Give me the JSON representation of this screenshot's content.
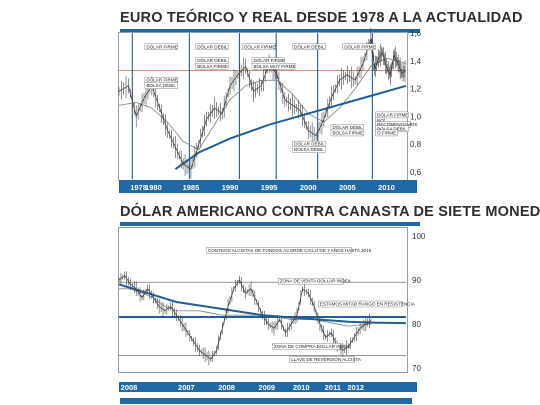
{
  "colors": {
    "accent": "#1f6aa4",
    "axis_bar": "#1f6aa4",
    "trend": "#1e5f9c",
    "price": "#444444",
    "ma": "#8a8a8a",
    "red": "#c8422e"
  },
  "chart_data": [
    {
      "type": "line",
      "title": "EURO TEÓRICO Y REAL DESDE 1978 A LA ACTUALIDAD",
      "x_ticks": [
        "1978",
        "1980",
        "1985",
        "1990",
        "1995",
        "2000",
        "2005",
        "2010"
      ],
      "y_ticks": [
        "1,6",
        "1,4",
        "1,2",
        "1,0",
        "0,8",
        "0,6"
      ],
      "ylim": [
        0.6,
        1.6
      ],
      "xlim": [
        1975.8,
        2012.5
      ],
      "series_price": [
        [
          1975.8,
          1.18
        ],
        [
          1977,
          1.22
        ],
        [
          1978,
          1.0
        ],
        [
          1979,
          1.13
        ],
        [
          1980,
          1.22
        ],
        [
          1981,
          1.06
        ],
        [
          1982,
          0.9
        ],
        [
          1983,
          0.78
        ],
        [
          1984,
          0.66
        ],
        [
          1985,
          0.62
        ],
        [
          1986,
          0.8
        ],
        [
          1987,
          0.98
        ],
        [
          1988,
          1.06
        ],
        [
          1989,
          1.02
        ],
        [
          1990,
          1.22
        ],
        [
          1991,
          1.3
        ],
        [
          1992,
          1.36
        ],
        [
          1993,
          1.18
        ],
        [
          1994,
          1.22
        ],
        [
          1995,
          1.38
        ],
        [
          1996,
          1.3
        ],
        [
          1997,
          1.12
        ],
        [
          1998,
          1.08
        ],
        [
          1999,
          1.04
        ],
        [
          2000,
          0.9
        ],
        [
          2001,
          0.86
        ],
        [
          2002,
          0.98
        ],
        [
          2003,
          1.14
        ],
        [
          2004,
          1.26
        ],
        [
          2005,
          1.3
        ],
        [
          2006,
          1.26
        ],
        [
          2007,
          1.38
        ],
        [
          2008,
          1.56
        ],
        [
          2008.5,
          1.34
        ],
        [
          2009,
          1.42
        ],
        [
          2009.5,
          1.46
        ],
        [
          2010,
          1.36
        ],
        [
          2010.5,
          1.3
        ],
        [
          2011,
          1.44
        ],
        [
          2011.5,
          1.38
        ],
        [
          2012,
          1.31
        ],
        [
          2012.5,
          1.33
        ]
      ],
      "series_ma": [
        [
          1975.8,
          1.08
        ],
        [
          1978,
          1.1
        ],
        [
          1980,
          1.06
        ],
        [
          1982,
          0.96
        ],
        [
          1984,
          0.82
        ],
        [
          1986,
          0.76
        ],
        [
          1988,
          0.94
        ],
        [
          1990,
          1.12
        ],
        [
          1992,
          1.22
        ],
        [
          1994,
          1.26
        ],
        [
          1996,
          1.26
        ],
        [
          1998,
          1.16
        ],
        [
          2000,
          1.02
        ],
        [
          2002,
          0.96
        ],
        [
          2004,
          1.06
        ],
        [
          2006,
          1.2
        ],
        [
          2008,
          1.36
        ],
        [
          2010,
          1.42
        ],
        [
          2012.5,
          1.38
        ]
      ],
      "series_trend": [
        [
          1983,
          0.62
        ],
        [
          1986,
          0.74
        ],
        [
          1990,
          0.84
        ],
        [
          1995,
          0.94
        ],
        [
          2000,
          1.02
        ],
        [
          2005,
          1.1
        ],
        [
          2010,
          1.18
        ],
        [
          2012.5,
          1.22
        ]
      ],
      "series_red": [
        [
          1975.8,
          1.33
        ],
        [
          2012.5,
          1.33
        ]
      ],
      "vlines": [
        1977.5,
        1984.8,
        1991.2,
        1995.9,
        2001.2,
        2008.2
      ],
      "annotations": [
        {
          "text": "DÓLAR FIRME",
          "x": 1979.3,
          "y": 1.49
        },
        {
          "text": "DÓLAR DÉBIL",
          "x": 1985.8,
          "y": 1.49
        },
        {
          "text": "DÓLAR FIRME",
          "x": 1991.8,
          "y": 1.49
        },
        {
          "text": "DÓLAR DÉBIL",
          "x": 1998.2,
          "y": 1.49
        },
        {
          "text": "DÓLAR FIRME",
          "x": 2004.6,
          "y": 1.49
        },
        {
          "text": "DÓLAR DÉBIL",
          "x": 1985.8,
          "y": 1.39
        },
        {
          "text": "BOLSA FIRME",
          "x": 1985.8,
          "y": 1.35
        },
        {
          "text": "DÓLAR FIRME",
          "x": 1993.0,
          "y": 1.39
        },
        {
          "text": "BOLSA MUY FIRME",
          "x": 1993.0,
          "y": 1.35
        },
        {
          "text": "DÓLAR FIRME",
          "x": 1979.3,
          "y": 1.25
        },
        {
          "text": "BOLSA DÉBIL",
          "x": 1979.3,
          "y": 1.21
        },
        {
          "text": "DÓLAR FIRME",
          "x": 2008.8,
          "y": 1.0
        },
        {
          "text": "NO",
          "x": 2008.8,
          "y": 0.96
        },
        {
          "text": "RECOMENDAMOS",
          "x": 2008.8,
          "y": 0.93
        },
        {
          "text": "BOLSA DÉBIL",
          "x": 2008.8,
          "y": 0.9
        },
        {
          "text": "O FIRME",
          "x": 2008.8,
          "y": 0.87
        },
        {
          "text": "DÓLAR DÉBIL",
          "x": 2003.1,
          "y": 0.91
        },
        {
          "text": "BOLSA FIRME",
          "x": 2003.1,
          "y": 0.87
        },
        {
          "text": "DÓLAR DÉBIL",
          "x": 1998.2,
          "y": 0.79
        },
        {
          "text": "BOLSA DÉBIL",
          "x": 1998.2,
          "y": 0.75
        }
      ]
    },
    {
      "type": "line",
      "title": "DÓLAR AMERICANO CONTRA CANASTA DE SIETE MONEDAS",
      "x_ticks": [
        "2008",
        "2007",
        "2008",
        "2009",
        "2010",
        "2011",
        "2012"
      ],
      "y_ticks": [
        "100",
        "90",
        "80",
        "70"
      ],
      "ylim": [
        70,
        100
      ],
      "xlim": [
        0,
        100
      ],
      "series_price": [
        [
          0,
          90
        ],
        [
          2,
          91
        ],
        [
          4,
          89
        ],
        [
          6,
          88
        ],
        [
          8,
          86
        ],
        [
          10,
          88
        ],
        [
          12,
          86
        ],
        [
          14,
          84
        ],
        [
          16,
          83
        ],
        [
          18,
          84
        ],
        [
          20,
          82
        ],
        [
          22,
          80
        ],
        [
          24,
          78
        ],
        [
          26,
          76
        ],
        [
          28,
          74
        ],
        [
          30,
          73
        ],
        [
          32,
          72
        ],
        [
          34,
          74
        ],
        [
          36,
          79
        ],
        [
          38,
          84
        ],
        [
          40,
          88
        ],
        [
          42,
          90
        ],
        [
          44,
          87
        ],
        [
          46,
          88
        ],
        [
          48,
          85
        ],
        [
          50,
          82
        ],
        [
          52,
          80
        ],
        [
          54,
          79
        ],
        [
          56,
          81
        ],
        [
          58,
          78
        ],
        [
          60,
          80
        ],
        [
          62,
          82
        ],
        [
          64,
          88
        ],
        [
          66,
          87
        ],
        [
          68,
          84
        ],
        [
          70,
          80
        ],
        [
          72,
          77
        ],
        [
          74,
          78
        ],
        [
          76,
          75
        ],
        [
          78,
          74
        ],
        [
          80,
          75
        ],
        [
          82,
          77
        ],
        [
          84,
          79
        ],
        [
          86,
          80
        ],
        [
          88,
          81
        ]
      ],
      "series_ma": [
        [
          0,
          88
        ],
        [
          4,
          88
        ],
        [
          8,
          87
        ],
        [
          12,
          86
        ],
        [
          16,
          84
        ],
        [
          20,
          83
        ],
        [
          24,
          83
        ],
        [
          28,
          83
        ],
        [
          32,
          82.5
        ],
        [
          36,
          82
        ],
        [
          40,
          82
        ],
        [
          44,
          82
        ],
        [
          48,
          82
        ],
        [
          52,
          81.8
        ],
        [
          56,
          81.5
        ],
        [
          60,
          81
        ],
        [
          64,
          81
        ],
        [
          68,
          81
        ],
        [
          72,
          80.5
        ],
        [
          76,
          80
        ],
        [
          80,
          79.5
        ],
        [
          84,
          79.8
        ],
        [
          88,
          80
        ]
      ],
      "series_trend": [
        [
          0,
          89
        ],
        [
          10,
          87
        ],
        [
          20,
          85
        ],
        [
          30,
          84
        ],
        [
          40,
          83
        ],
        [
          50,
          82
        ],
        [
          60,
          81.5
        ],
        [
          70,
          81
        ],
        [
          80,
          80.5
        ],
        [
          90,
          80.3
        ],
        [
          100,
          80.2
        ]
      ],
      "hlines": [
        {
          "y": 89.5
        },
        {
          "y": 81.6
        },
        {
          "y": 72.8
        }
      ],
      "annotations": [
        {
          "text": "CONTEOS ALCISTAS DE FONDOS ACORDE CICLO DE 7 AÑOS HASTA 2015",
          "x": 31,
          "y": 96.4
        },
        {
          "text": "ZONA DE VENTA DOLLAR INDEX",
          "x": 56,
          "y": 89.4
        },
        {
          "text": "ESTAMOS MITAD RANGO EN RESISTENCIA",
          "x": 70,
          "y": 84.2
        },
        {
          "text": "ZONA DE COMPRA DOLLAR INDEX",
          "x": 54,
          "y": 74.6
        },
        {
          "text": "LLAVE DE REVERSIÓN ALCISTA",
          "x": 60,
          "y": 71.6
        }
      ]
    }
  ]
}
